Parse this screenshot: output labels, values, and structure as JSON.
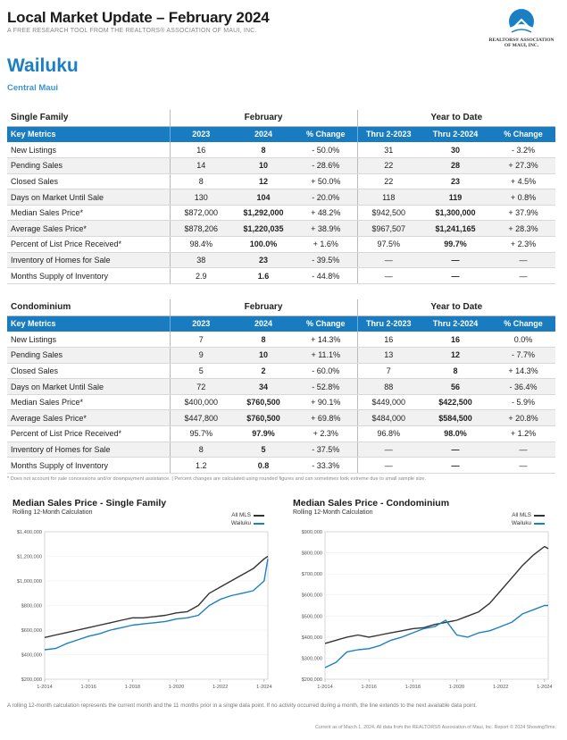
{
  "header": {
    "title": "Local Market Update – February 2024",
    "subtitle": "A FREE RESEARCH TOOL FROM THE REALTORS® ASSOCIATION OF MAUI, INC.",
    "logo_line1": "REALTORS® ASSOCIATION",
    "logo_line2": "OF MAUI, INC.",
    "area": "Wailuku",
    "region": "Central Maui"
  },
  "single_family": {
    "section": "Single Family",
    "group_mid": "February",
    "group_ytd": "Year to Date",
    "columns": [
      "Key Metrics",
      "2023",
      "2024",
      "% Change",
      "Thru 2-2023",
      "Thru 2-2024",
      "% Change"
    ],
    "rows": [
      [
        "New Listings",
        "16",
        "8",
        "- 50.0%",
        "31",
        "30",
        "- 3.2%"
      ],
      [
        "Pending Sales",
        "14",
        "10",
        "- 28.6%",
        "22",
        "28",
        "+ 27.3%"
      ],
      [
        "Closed Sales",
        "8",
        "12",
        "+ 50.0%",
        "22",
        "23",
        "+ 4.5%"
      ],
      [
        "Days on Market Until Sale",
        "130",
        "104",
        "- 20.0%",
        "118",
        "119",
        "+ 0.8%"
      ],
      [
        "Median Sales Price*",
        "$872,000",
        "$1,292,000",
        "+ 48.2%",
        "$942,500",
        "$1,300,000",
        "+ 37.9%"
      ],
      [
        "Average Sales Price*",
        "$878,206",
        "$1,220,035",
        "+ 38.9%",
        "$967,507",
        "$1,241,165",
        "+ 28.3%"
      ],
      [
        "Percent of List Price Received*",
        "98.4%",
        "100.0%",
        "+ 1.6%",
        "97.5%",
        "99.7%",
        "+ 2.3%"
      ],
      [
        "Inventory of Homes for Sale",
        "38",
        "23",
        "- 39.5%",
        "—",
        "—",
        "—"
      ],
      [
        "Months Supply of Inventory",
        "2.9",
        "1.6",
        "- 44.8%",
        "—",
        "—",
        "—"
      ]
    ]
  },
  "condominium": {
    "section": "Condominium",
    "group_mid": "February",
    "group_ytd": "Year to Date",
    "columns": [
      "Key Metrics",
      "2023",
      "2024",
      "% Change",
      "Thru 2-2023",
      "Thru 2-2024",
      "% Change"
    ],
    "rows": [
      [
        "New Listings",
        "7",
        "8",
        "+ 14.3%",
        "16",
        "16",
        "0.0%"
      ],
      [
        "Pending Sales",
        "9",
        "10",
        "+ 11.1%",
        "13",
        "12",
        "- 7.7%"
      ],
      [
        "Closed Sales",
        "5",
        "2",
        "- 60.0%",
        "7",
        "8",
        "+ 14.3%"
      ],
      [
        "Days on Market Until Sale",
        "72",
        "34",
        "- 52.8%",
        "88",
        "56",
        "- 36.4%"
      ],
      [
        "Median Sales Price*",
        "$400,000",
        "$760,500",
        "+ 90.1%",
        "$449,000",
        "$422,500",
        "- 5.9%"
      ],
      [
        "Average Sales Price*",
        "$447,800",
        "$760,500",
        "+ 69.8%",
        "$484,000",
        "$584,500",
        "+ 20.8%"
      ],
      [
        "Percent of List Price Received*",
        "95.7%",
        "97.9%",
        "+ 2.3%",
        "96.8%",
        "98.0%",
        "+ 1.2%"
      ],
      [
        "Inventory of Homes for Sale",
        "8",
        "5",
        "- 37.5%",
        "—",
        "—",
        "—"
      ],
      [
        "Months Supply of Inventory",
        "1.2",
        "0.8",
        "- 33.3%",
        "—",
        "—",
        "—"
      ]
    ]
  },
  "footnote": "* Does not account for sale concessions and/or downpayment assistance. | Percent changes are calculated using rounded figures and can sometimes look extreme due to small sample size.",
  "chart_data": [
    {
      "type": "line",
      "title": "Median Sales Price - Single Family",
      "subtitle": "Rolling 12-Month Calculation",
      "x_ticks": [
        "1-2014",
        "1-2016",
        "1-2018",
        "1-2020",
        "1-2022",
        "1-2024"
      ],
      "y_ticks": [
        "$1,400,000",
        "$1,200,000",
        "$1,000,000",
        "$800,000",
        "$600,000",
        "$400,000",
        "$200,000"
      ],
      "ylim": [
        200000,
        1400000
      ],
      "x": [
        2014.0,
        2014.5,
        2015.0,
        2015.5,
        2016.0,
        2016.5,
        2017.0,
        2017.5,
        2018.0,
        2018.5,
        2019.0,
        2019.5,
        2020.0,
        2020.5,
        2021.0,
        2021.5,
        2022.0,
        2022.5,
        2023.0,
        2023.5,
        2024.0,
        2024.17
      ],
      "series": [
        {
          "name": "All MLS",
          "color": "#333333",
          "values": [
            540000,
            560000,
            580000,
            600000,
            620000,
            640000,
            660000,
            680000,
            700000,
            700000,
            710000,
            720000,
            740000,
            750000,
            800000,
            900000,
            950000,
            1000000,
            1050000,
            1100000,
            1180000,
            1200000
          ]
        },
        {
          "name": "Wailuku",
          "color": "#1b7fc4",
          "values": [
            440000,
            450000,
            490000,
            520000,
            550000,
            570000,
            600000,
            620000,
            640000,
            650000,
            660000,
            670000,
            690000,
            700000,
            720000,
            800000,
            850000,
            880000,
            900000,
            920000,
            1000000,
            1180000
          ]
        }
      ],
      "legend": "top-right"
    },
    {
      "type": "line",
      "title": "Median Sales Price - Condominium",
      "subtitle": "Rolling 12-Month Calculation",
      "x_ticks": [
        "1-2014",
        "1-2016",
        "1-2018",
        "1-2020",
        "1-2022",
        "1-2024"
      ],
      "y_ticks": [
        "$900,000",
        "$800,000",
        "$700,000",
        "$600,000",
        "$500,000",
        "$400,000",
        "$300,000",
        "$200,000"
      ],
      "ylim": [
        200000,
        900000
      ],
      "x": [
        2014.0,
        2014.5,
        2015.0,
        2015.5,
        2016.0,
        2016.5,
        2017.0,
        2017.5,
        2018.0,
        2018.5,
        2019.0,
        2019.5,
        2020.0,
        2020.5,
        2021.0,
        2021.5,
        2022.0,
        2022.5,
        2023.0,
        2023.5,
        2024.0,
        2024.17
      ],
      "series": [
        {
          "name": "All MLS",
          "color": "#333333",
          "values": [
            370000,
            385000,
            400000,
            410000,
            400000,
            410000,
            420000,
            430000,
            440000,
            445000,
            460000,
            470000,
            480000,
            500000,
            520000,
            560000,
            620000,
            680000,
            740000,
            790000,
            830000,
            820000
          ]
        },
        {
          "name": "Wailuku",
          "color": "#1b7fc4",
          "values": [
            255000,
            280000,
            330000,
            340000,
            345000,
            360000,
            385000,
            400000,
            420000,
            440000,
            450000,
            480000,
            410000,
            400000,
            420000,
            430000,
            450000,
            470000,
            510000,
            530000,
            550000,
            550000
          ]
        }
      ],
      "legend": "top-right"
    }
  ],
  "chart_footnote": "A rolling 12-month calculation represents the current month and the 11 months prior in a single data point. If no activity occurred during a month, the line extends to the next available data point.",
  "bottom_note": "Current as of March 1, 2024. All data from the REALTORS® Association of Maui, Inc. Report © 2024 ShowingTime."
}
